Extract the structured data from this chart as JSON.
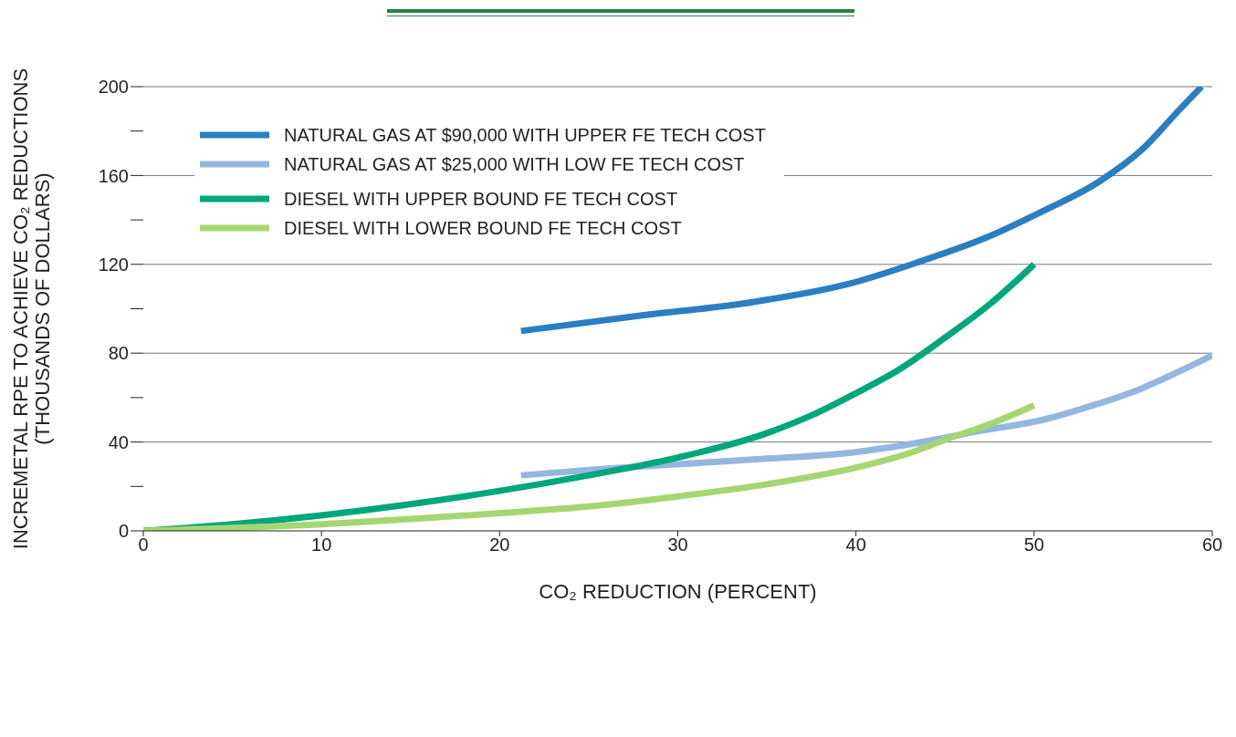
{
  "chart_data": {
    "type": "line",
    "xlabel": "CO₂ REDUCTION (PERCENT)",
    "ylabel": "INCREMETAL RPE TO ACHIEVE CO₂ REDUCTIONS\n(THOUSANDS OF DOLLARS)",
    "xlim": [
      0,
      60
    ],
    "xticks": [
      0,
      10,
      20,
      30,
      40,
      50,
      60
    ],
    "ylim": [
      0,
      200
    ],
    "yticks": [
      0,
      {
        "value": 20,
        "label": null
      },
      40,
      {
        "value": 60,
        "label": null
      },
      80,
      {
        "value": 100,
        "label": null
      },
      120,
      {
        "value": 140,
        "label": null
      },
      160,
      {
        "value": 180,
        "label": null
      },
      200
    ],
    "grid": "y",
    "legend": "top left",
    "series": [
      {
        "name": "NATURAL GAS AT $90,000 WITH UPPER FE TECH COST",
        "color": "#2a7fc3",
        "x": [
          21.2,
          28,
          34.2,
          39.5,
          43.5,
          47.3,
          50.5,
          53.6,
          56.1,
          58.2,
          59.4
        ],
        "values": [
          90,
          97,
          103,
          111,
          121,
          132,
          144,
          157,
          172,
          190,
          200
        ]
      },
      {
        "name": "NATURAL GAS AT $25,000 WITH LOW FE TECH COST",
        "color": "#94b7e0",
        "x": [
          21.2,
          26,
          30,
          35,
          39.5,
          43,
          47,
          50.5,
          53.5,
          56,
          58.2,
          60
        ],
        "values": [
          25,
          28,
          30,
          32.5,
          35,
          39,
          45,
          50,
          57,
          64,
          72,
          79
        ]
      },
      {
        "name": "DIESEL WITH UPPER BOUND FE TECH COST",
        "color": "#00a77c",
        "x": [
          0,
          5,
          10,
          15,
          20,
          25,
          30,
          35,
          37.5,
          40,
          42.5,
          45,
          47.5,
          50
        ],
        "values": [
          0,
          3,
          7,
          12,
          18,
          25,
          33,
          44,
          52,
          62,
          73,
          87,
          102,
          120
        ]
      },
      {
        "name": "DIESEL WITH LOWER BOUND FE TECH COST",
        "color": "#a6d672",
        "x": [
          0,
          10,
          20,
          25,
          30,
          35,
          40,
          43,
          45,
          47.5,
          50
        ],
        "values": [
          0,
          3,
          8,
          11,
          15.5,
          21,
          28.5,
          35,
          41,
          48,
          56.5
        ]
      }
    ]
  }
}
